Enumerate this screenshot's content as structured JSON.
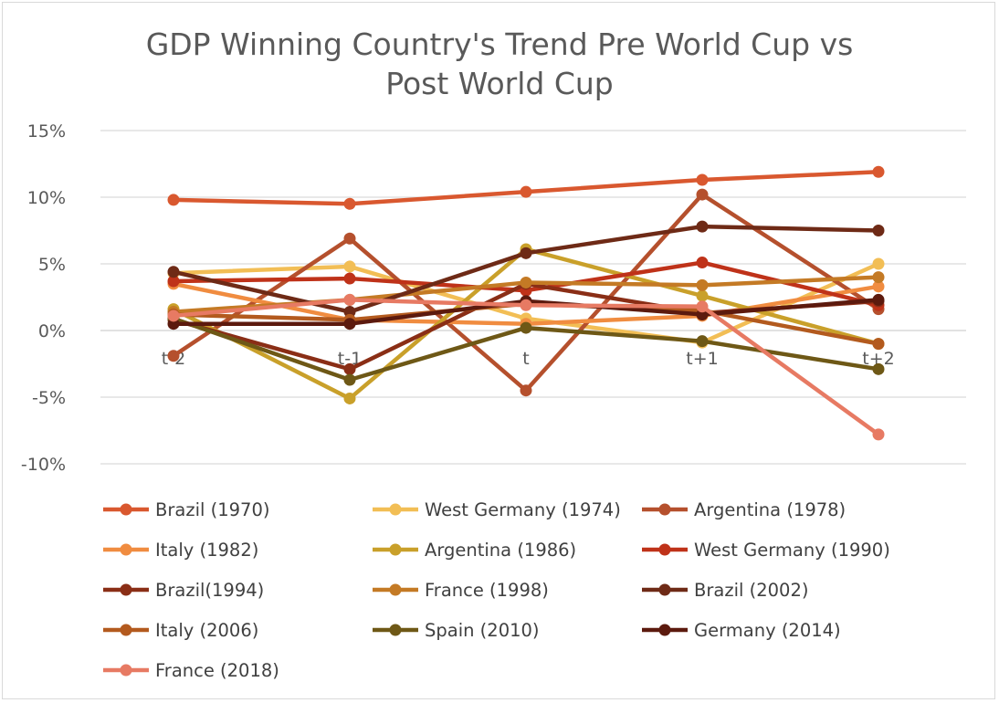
{
  "chart_data": {
    "type": "line",
    "title": "GDP Winning Country's Trend Pre World Cup vs Post World Cup",
    "title_lines": [
      "GDP Winning Country's Trend Pre World Cup vs",
      "Post World Cup"
    ],
    "categories": [
      "t-2",
      "t-1",
      "t",
      "t+1",
      "t+2"
    ],
    "ylim": [
      -10,
      15
    ],
    "yticks": [
      15,
      10,
      5,
      0,
      -5,
      -10
    ],
    "ytick_labels": [
      "15%",
      "10%",
      "5%",
      "0%",
      "-5%",
      "-10%"
    ],
    "grid": true,
    "legend_position": "bottom",
    "series": [
      {
        "name": "Brazil (1970)",
        "color": "#d9582f",
        "values": [
          9.8,
          9.5,
          10.4,
          11.3,
          11.9
        ]
      },
      {
        "name": "West Germany (1974)",
        "color": "#f2be55",
        "values": [
          4.3,
          4.8,
          0.9,
          -0.9,
          5.0
        ]
      },
      {
        "name": "Argentina (1978)",
        "color": "#b5502d",
        "values": [
          -1.9,
          6.9,
          -4.5,
          10.2,
          1.6
        ]
      },
      {
        "name": "Italy (1982)",
        "color": "#f08c40",
        "values": [
          3.5,
          0.8,
          0.5,
          1.1,
          3.3
        ]
      },
      {
        "name": "Argentina (1986)",
        "color": "#c9a02a",
        "values": [
          1.6,
          -5.1,
          6.1,
          2.6,
          -1.0
        ]
      },
      {
        "name": "West Germany (1990)",
        "color": "#bf3219",
        "values": [
          3.7,
          3.9,
          3.0,
          5.1,
          1.9
        ]
      },
      {
        "name": "Brazil(1994)",
        "color": "#8a2e16",
        "values": [
          0.8,
          -2.9,
          3.5,
          1.3,
          2.2
        ]
      },
      {
        "name": "France (1998)",
        "color": "#c47a25",
        "values": [
          1.4,
          2.3,
          3.6,
          3.4,
          4.0
        ]
      },
      {
        "name": "Brazil (2002)",
        "color": "#6e2a16",
        "values": [
          4.4,
          1.4,
          5.8,
          7.8,
          7.5
        ]
      },
      {
        "name": "Italy (2006)",
        "color": "#b35a1e",
        "values": [
          1.2,
          0.8,
          2.0,
          1.5,
          -1.0
        ]
      },
      {
        "name": "Spain (2010)",
        "color": "#6e5816",
        "values": [
          0.9,
          -3.7,
          0.2,
          -0.8,
          -2.9
        ]
      },
      {
        "name": "Germany (2014)",
        "color": "#5c1a0e",
        "values": [
          0.5,
          0.5,
          2.2,
          1.2,
          2.3
        ]
      },
      {
        "name": "France (2018)",
        "color": "#e77a63",
        "values": [
          1.1,
          2.3,
          1.9,
          1.8,
          -7.8
        ]
      }
    ]
  }
}
